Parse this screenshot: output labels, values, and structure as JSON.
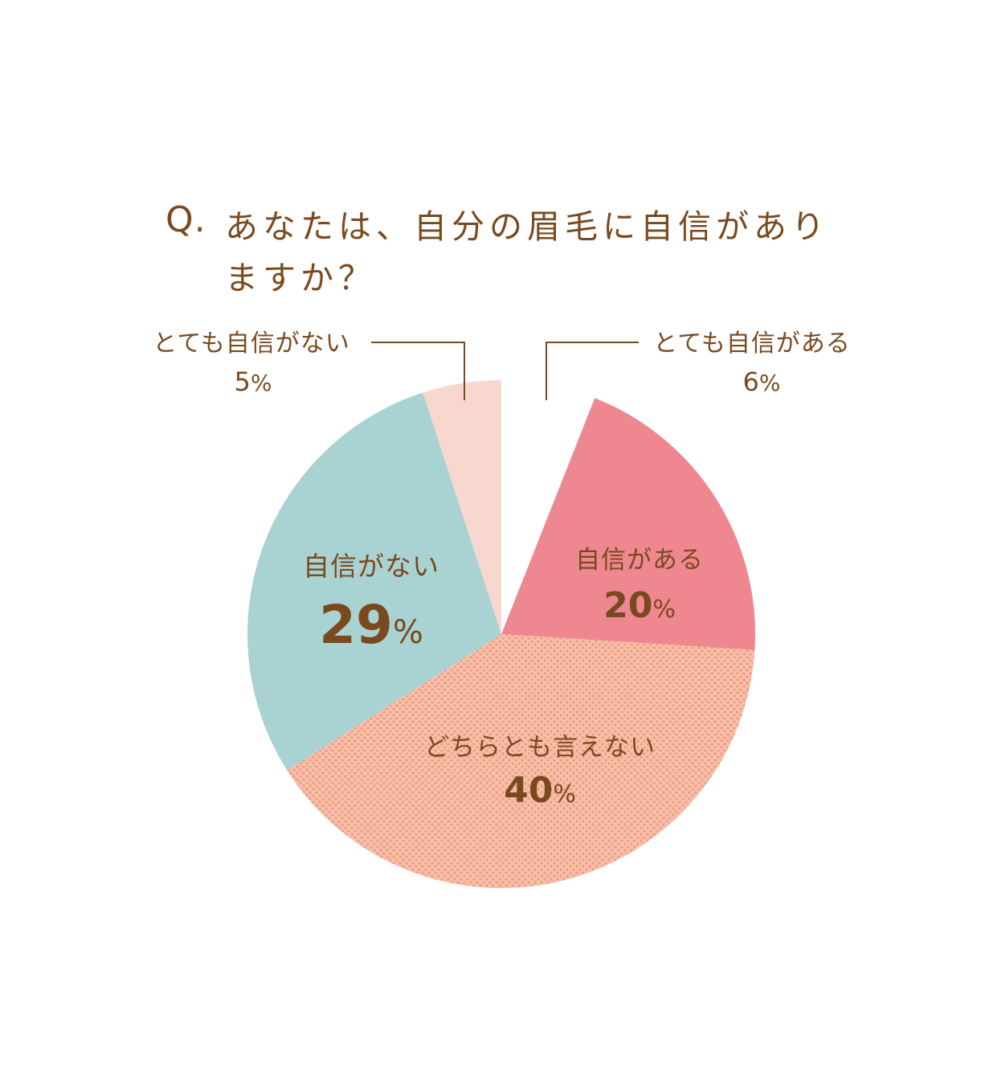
{
  "title": {
    "prefix": "Q.",
    "line1": "あなたは、自分の眉毛に自信があり",
    "line2": "ますか？"
  },
  "colors": {
    "text": "#7a4a1e",
    "leader": "#7a4a1e",
    "very_confident": "#ffffff",
    "confident": "#ee8790",
    "neutral_base": "#f7bfa9",
    "neutral_dot": "#ee9a83",
    "not_confident": "#a8d3d2",
    "not_at_all": "#f8d8ce"
  },
  "chart_data": {
    "type": "pie",
    "title": "Q. あなたは、自分の眉毛に自信がありますか？",
    "unit": "%",
    "slices": [
      {
        "label": "とても自信がある",
        "value": 6,
        "value_text": "6",
        "color": "#ffffff",
        "pattern": "none",
        "label_placement": "outside"
      },
      {
        "label": "自信がある",
        "value": 20,
        "value_text": "20",
        "color": "#ee8790",
        "pattern": "none",
        "label_placement": "inside"
      },
      {
        "label": "どちらとも言えない",
        "value": 40,
        "value_text": "40",
        "color": "#f7bfa9",
        "pattern": "dots",
        "label_placement": "inside"
      },
      {
        "label": "自信がない",
        "value": 29,
        "value_text": "29",
        "color": "#a8d3d2",
        "pattern": "none",
        "label_placement": "inside"
      },
      {
        "label": "とても自信がない",
        "value": 5,
        "value_text": "5",
        "color": "#f8d8ce",
        "pattern": "none",
        "label_placement": "outside"
      }
    ]
  }
}
